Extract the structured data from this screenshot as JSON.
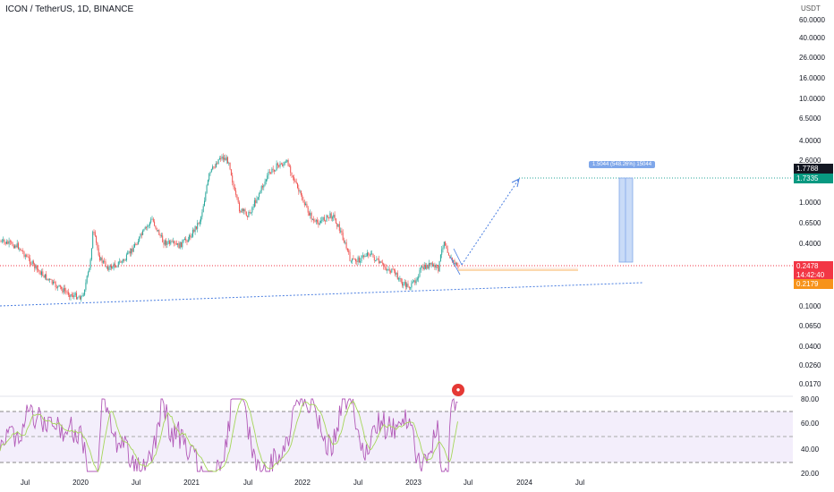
{
  "header": {
    "title": "ICON / TetherUS, 1D, BINANCE",
    "currency": "USDT"
  },
  "price_axis": [
    "60.0000",
    "40.0000",
    "26.0000",
    "16.0000",
    "10.0000",
    "6.5000",
    "4.0000",
    "2.6000",
    "1.0000",
    "0.6500",
    "0.4000",
    "0.1000",
    "0.0650",
    "0.0400",
    "0.0260",
    "0.0170"
  ],
  "rsi_axis": [
    "80.00",
    "60.00",
    "40.00",
    "20.00"
  ],
  "time_axis": [
    "Jul",
    "2020",
    "Jul",
    "2021",
    "Jul",
    "2022",
    "Jul",
    "2023",
    "Jul",
    "2024",
    "Jul"
  ],
  "badges": {
    "target": "1.7788",
    "target2": "1.7335",
    "current": "0.2478",
    "countdown": "14:42:40",
    "support": "0.2179"
  },
  "projection_label": "1.5044 (548.26%) 15044",
  "colors": {
    "up": "#26a69a",
    "down": "#ef5350",
    "rsi": "#b25ab8",
    "rsi_ma": "#a5d65a",
    "trend": "#4a7ee0",
    "current": "#f23645",
    "target": "#089981",
    "support": "#f7931a"
  }
}
